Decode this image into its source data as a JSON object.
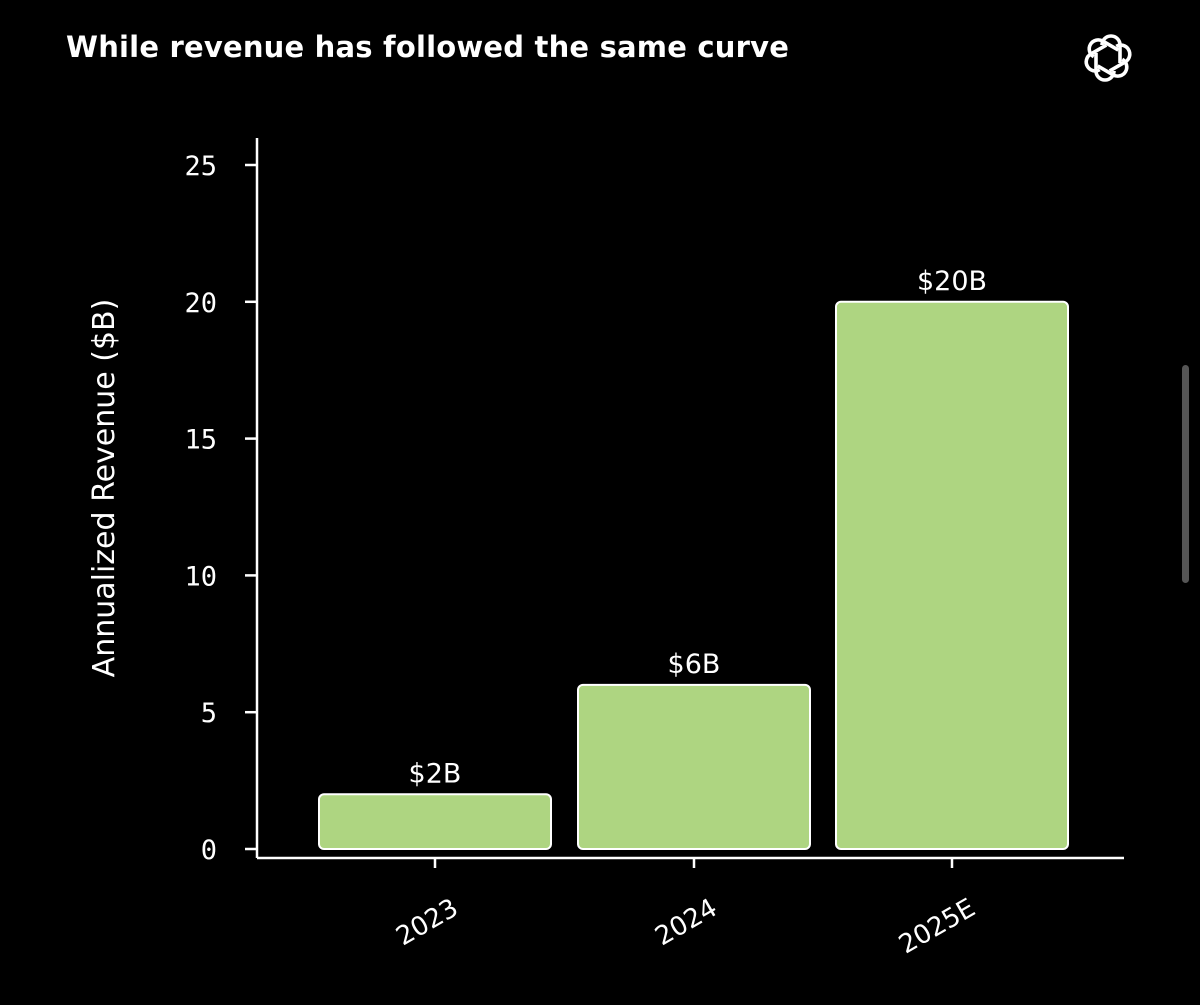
{
  "header": {
    "title": "While revenue has followed the same curve",
    "logo_icon": "openai-logo-icon"
  },
  "colors": {
    "background": "#000000",
    "bar_fill": "#aed581",
    "bar_stroke": "#ffffff",
    "text": "#ffffff",
    "scrollbar": "#555555"
  },
  "chart_data": {
    "type": "bar",
    "title": "While revenue has followed the same curve",
    "xlabel": "",
    "ylabel": "Annualized Revenue ($B)",
    "categories": [
      "2023",
      "2024",
      "2025E"
    ],
    "values": [
      2,
      6,
      20
    ],
    "data_labels": [
      "$2B",
      "$6B",
      "$20B"
    ],
    "ylim": [
      0,
      25
    ],
    "yticks": [
      0,
      5,
      10,
      15,
      20,
      25
    ],
    "grid": false,
    "legend": "none"
  }
}
